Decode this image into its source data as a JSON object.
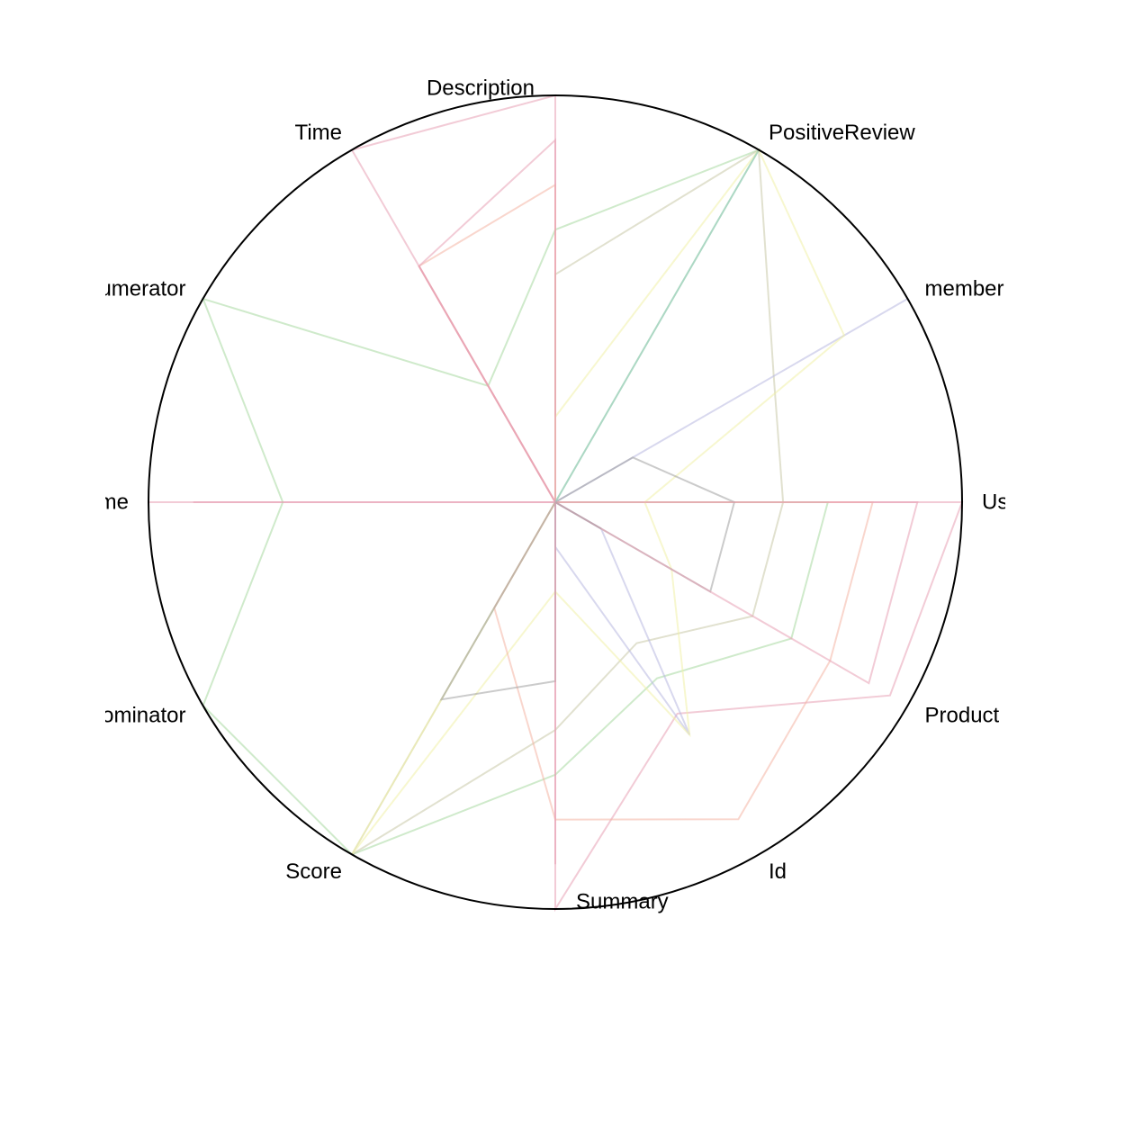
{
  "chart_data": {
    "type": "radar",
    "axes": [
      "Description",
      "PositiveReview",
      "member",
      "User",
      "Product",
      "Id",
      "Summary",
      "Score",
      "Denominator",
      "Name",
      "Numerator",
      "Time"
    ],
    "rlim": [
      0,
      1
    ],
    "grid": false,
    "legend": "none",
    "series": [
      {
        "color": "#e8a0b4",
        "values": [
          1.0,
          0.0,
          0.0,
          1.0,
          0.95,
          0.6,
          1.0,
          0.0,
          0.0,
          1.0,
          0.0,
          1.0
        ]
      },
      {
        "color": "#a8d8a0",
        "values": [
          0.67,
          1.0,
          0.0,
          0.67,
          0.67,
          0.5,
          0.67,
          1.0,
          1.0,
          0.67,
          1.0,
          0.33
        ]
      },
      {
        "color": "#c8c8a8",
        "values": [
          0.56,
          1.0,
          0.62,
          0.56,
          0.56,
          0.4,
          0.56,
          1.0,
          0.0,
          0.0,
          0.0,
          0.0
        ]
      },
      {
        "color": "#b8b8e0",
        "values": [
          0.0,
          0.0,
          1.0,
          0.0,
          0.13,
          0.66,
          0.11,
          0.0,
          0.0,
          0.0,
          0.0,
          0.0
        ]
      },
      {
        "color": "#f0f0a8",
        "values": [
          0.21,
          1.0,
          0.82,
          0.22,
          0.33,
          0.66,
          0.22,
          1.0,
          0.0,
          0.0,
          0.0,
          0.0
        ]
      },
      {
        "color": "#f4b4a4",
        "values": [
          0.78,
          0.0,
          0.0,
          0.78,
          0.78,
          0.9,
          0.78,
          0.3,
          0.0,
          0.0,
          0.0,
          0.67
        ]
      },
      {
        "color": "#a0a0a0",
        "values": [
          0.0,
          0.0,
          0.22,
          0.44,
          0.44,
          0.0,
          0.44,
          0.56,
          0.0,
          0.0,
          0.0,
          0.0
        ]
      },
      {
        "color": "#e8a0b4",
        "values": [
          0.89,
          0.0,
          0.0,
          0.89,
          0.89,
          0.0,
          0.89,
          0.0,
          0.0,
          0.89,
          0.0,
          0.67
        ]
      },
      {
        "color": "#90c8c0",
        "values": [
          0.0,
          1.0,
          0.0,
          0.0,
          0.0,
          0.0,
          0.0,
          0.0,
          0.0,
          0.0,
          0.0,
          0.0
        ]
      },
      {
        "color": "#b0a0a8",
        "values": [
          0.0,
          0.0,
          0.0,
          0.0,
          0.13,
          0.0,
          0.0,
          0.0,
          0.0,
          0.0,
          0.0,
          0.0
        ]
      },
      {
        "color": "#e8a0b4",
        "values": [
          0.0,
          0.0,
          0.0,
          0.0,
          0.0,
          0.0,
          0.0,
          0.0,
          0.0,
          0.0,
          0.0,
          0.67
        ]
      }
    ]
  }
}
